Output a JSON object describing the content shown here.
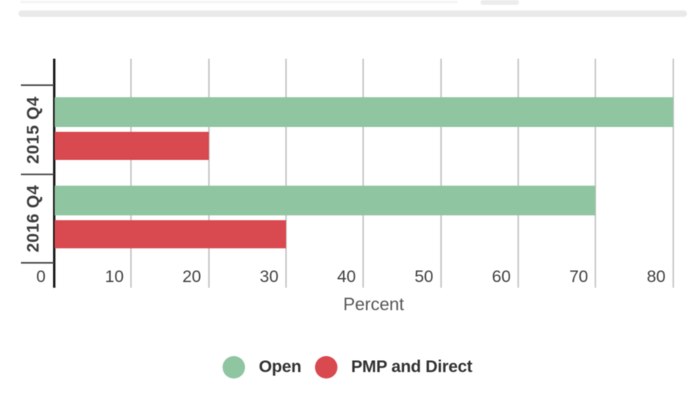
{
  "page": {
    "background": "#ffffff",
    "top_divider_color": "#e9e9e9"
  },
  "chart_data": {
    "type": "bar",
    "orientation": "horizontal",
    "categories": [
      "2015 Q4",
      "2016 Q4"
    ],
    "series": [
      {
        "name": "Open",
        "color": "#90C5A1",
        "values": [
          80,
          70
        ]
      },
      {
        "name": "PMP and Direct",
        "color": "#D94950",
        "values": [
          20,
          30
        ]
      }
    ],
    "xlabel": "Percent",
    "x_ticks": [
      0,
      10,
      20,
      30,
      40,
      50,
      60,
      70,
      80
    ],
    "xlim": [
      0,
      82
    ],
    "grid": true,
    "legend_position": "bottom",
    "colors": {
      "axis": "#1a1a1a",
      "gridline": "#c9c9c9",
      "category_tick": "#4a4a4a",
      "tick_label": "#424242",
      "category_label": "#3d3d3d",
      "xlabel": "#575757",
      "legend_text": "#333333"
    }
  }
}
